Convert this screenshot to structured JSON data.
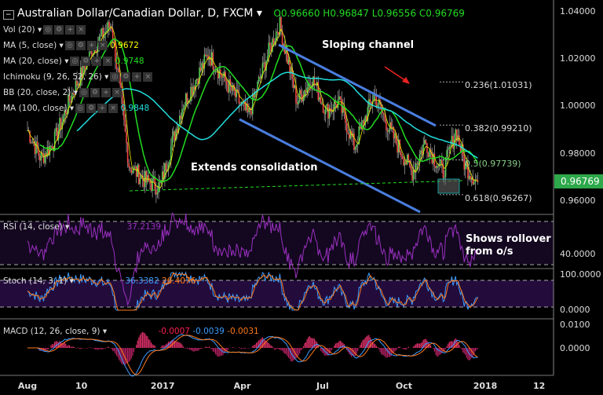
{
  "header": {
    "symbol": "Australian Dollar/Canadian Dollar, D, FXCM",
    "open_label": "O",
    "open": "0.96660",
    "high_label": "H",
    "high": "0.96847",
    "low_label": "L",
    "low": "0.96556",
    "close_label": "C",
    "close": "0.96769"
  },
  "indicators": [
    {
      "label": "Vol (20)",
      "value": ""
    },
    {
      "label": "MA (5, close)",
      "value": "0.9672",
      "color": "#ffff00"
    },
    {
      "label": "MA (20, close)",
      "value": "0.9748",
      "color": "#22dd22"
    },
    {
      "label": "Ichimoku (9, 26, 52, 26)",
      "value": ""
    },
    {
      "label": "BB (20, close, 2)",
      "value": ""
    },
    {
      "label": "MA (100, close)",
      "value": "0.9848",
      "color": "#22dddd"
    }
  ],
  "annotations": {
    "channel": "Sloping channel",
    "consolidation": "Extends consolidation",
    "rollover": "Shows rollover from o/s"
  },
  "fib": [
    {
      "label": "0.236(1.01031)",
      "level": 1.01031
    },
    {
      "label": "0.382(0.99210)",
      "level": 0.9921
    },
    {
      "label": "0.5(0.97739)",
      "level": 0.97739
    },
    {
      "label": "0.618(0.96267)",
      "level": 0.96267
    }
  ],
  "price_axis": [
    "1.04000",
    "1.02000",
    "1.00000",
    "0.98000",
    "0.96000"
  ],
  "last_price": "0.96769",
  "rsi": {
    "label": "RSI (14, close)",
    "value": "37.2139",
    "axis": "40.0000"
  },
  "stoch": {
    "label": "Stoch (14, 3, 1)",
    "k": "36.3382",
    "d": "26.4076",
    "axis_top": "100.0000",
    "axis_bot": "0.0000"
  },
  "macd": {
    "label": "MACD (12, 26, close, 9)",
    "hist": "-0.0007",
    "macd": "-0.0039",
    "signal": "-0.0031",
    "axis_top": "0.0100",
    "axis_mid": "0.0000"
  },
  "x_axis": [
    {
      "label": "Aug",
      "day": 0
    },
    {
      "label": "10",
      "day": 61
    },
    {
      "label": "2017",
      "day": 153
    },
    {
      "label": "Apr",
      "day": 243
    },
    {
      "label": "Jul",
      "day": 334
    },
    {
      "label": "Oct",
      "day": 426
    },
    {
      "label": "2018",
      "day": 518
    },
    {
      "label": "12",
      "day": 579
    }
  ],
  "chart_data": {
    "type": "candlestick",
    "title": "Australian Dollar/Canadian Dollar, D, FXCM",
    "ylim": [
      0.955,
      1.043
    ],
    "x_unit": "days since 2016-08-01",
    "key_closes": [
      [
        0,
        0.99
      ],
      [
        15,
        0.978
      ],
      [
        30,
        0.985
      ],
      [
        50,
        1.005
      ],
      [
        75,
        1.025
      ],
      [
        95,
        1.035
      ],
      [
        115,
        0.975
      ],
      [
        135,
        0.968
      ],
      [
        150,
        0.966
      ],
      [
        175,
        1.0
      ],
      [
        205,
        1.022
      ],
      [
        225,
        1.01
      ],
      [
        250,
        0.996
      ],
      [
        270,
        1.02
      ],
      [
        285,
        1.035
      ],
      [
        305,
        1.002
      ],
      [
        322,
        1.012
      ],
      [
        338,
        0.998
      ],
      [
        352,
        1.002
      ],
      [
        370,
        0.983
      ],
      [
        392,
        1.005
      ],
      [
        410,
        0.99
      ],
      [
        435,
        0.972
      ],
      [
        450,
        0.985
      ],
      [
        470,
        0.972
      ],
      [
        485,
        0.99
      ],
      [
        495,
        0.975
      ],
      [
        510,
        0.9677
      ]
    ]
  }
}
